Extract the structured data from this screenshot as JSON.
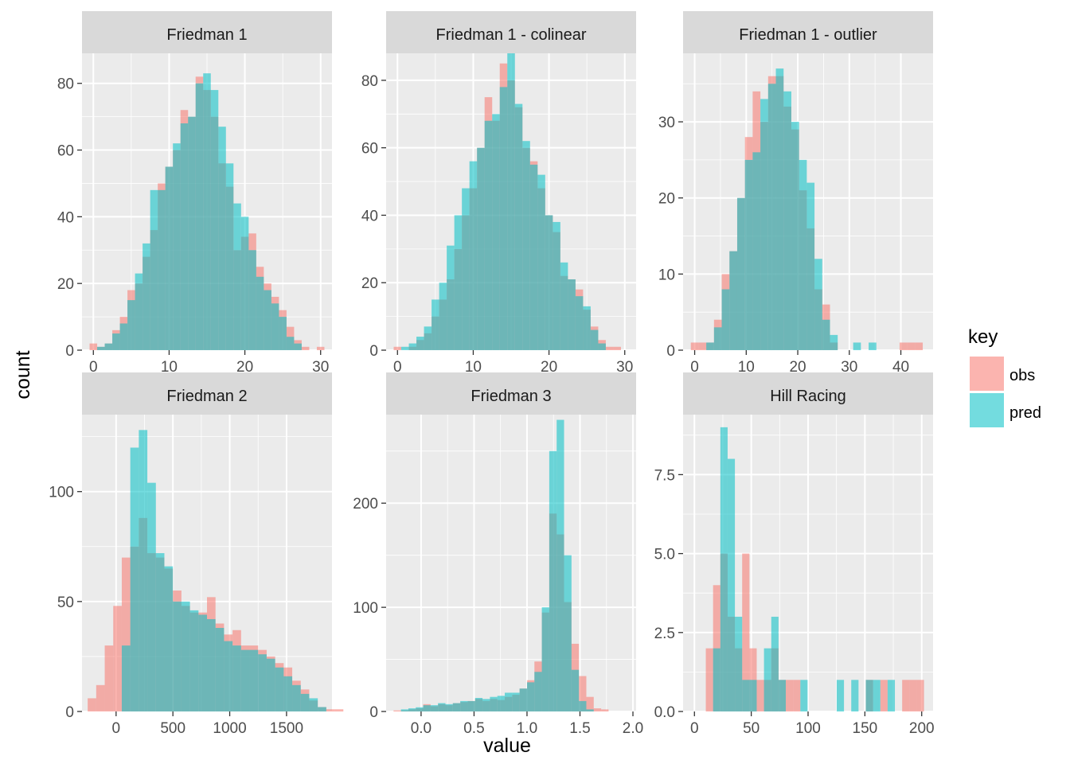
{
  "chart_data": [
    {
      "type": "bar",
      "title": "Friedman 1",
      "xlim": [
        -1.5,
        31.5
      ],
      "ylim": [
        0,
        89
      ],
      "xticks": [
        0,
        10,
        20,
        30
      ],
      "yticks": [
        0,
        20,
        40,
        60,
        80
      ],
      "ytick_labels": [
        "0",
        "20",
        "40",
        "60",
        "80"
      ],
      "bin_start": -0.5,
      "bin_width": 1,
      "series": [
        {
          "name": "obs",
          "values": [
            2,
            1,
            2,
            6,
            10,
            18,
            20,
            28,
            36,
            50,
            55,
            60,
            72,
            70,
            82,
            78,
            70,
            56,
            49,
            30,
            34,
            35,
            25,
            20,
            16,
            12,
            7,
            3,
            1,
            0,
            1
          ]
        },
        {
          "name": "pred",
          "values": [
            0,
            1,
            2,
            5,
            8,
            15,
            23,
            32,
            48,
            48,
            55,
            62,
            68,
            70,
            80,
            83,
            78,
            67,
            56,
            44,
            40,
            30,
            22,
            18,
            14,
            10,
            4,
            2,
            0,
            0,
            0
          ]
        }
      ]
    },
    {
      "type": "bar",
      "title": "Friedman 1 - colinear",
      "xlim": [
        -1.5,
        31.5
      ],
      "ylim": [
        0,
        88
      ],
      "xticks": [
        0,
        10,
        20,
        30
      ],
      "yticks": [
        0,
        20,
        40,
        60,
        80
      ],
      "ytick_labels": [
        "0",
        "20",
        "40",
        "60",
        "80"
      ],
      "bin_start": -0.5,
      "bin_width": 1,
      "series": [
        {
          "name": "obs",
          "values": [
            1,
            0,
            1,
            3,
            5,
            10,
            15,
            21,
            30,
            40,
            48,
            60,
            75,
            68,
            85,
            80,
            72,
            60,
            56,
            48,
            40,
            35,
            22,
            21,
            18,
            12,
            7,
            3,
            1,
            1,
            0
          ]
        },
        {
          "name": "pred",
          "values": [
            0,
            1,
            2,
            4,
            7,
            15,
            20,
            31,
            40,
            48,
            56,
            60,
            68,
            70,
            78,
            88,
            73,
            62,
            55,
            52,
            40,
            38,
            26,
            21,
            16,
            13,
            6,
            2,
            0,
            0,
            0
          ]
        }
      ]
    },
    {
      "type": "bar",
      "title": "Friedman 1 - outlier",
      "xlim": [
        -2.25,
        46.25
      ],
      "ylim": [
        0,
        39
      ],
      "xticks": [
        0,
        10,
        20,
        30,
        40
      ],
      "yticks": [
        0,
        10,
        20,
        30
      ],
      "ytick_labels": [
        "0",
        "10",
        "20",
        "30"
      ],
      "bin_start": -0.75,
      "bin_width": 1.5,
      "series": [
        {
          "name": "obs",
          "values": [
            1,
            1,
            1,
            4,
            10,
            13,
            20,
            28,
            34,
            30,
            36,
            36,
            32,
            29,
            21,
            16,
            8,
            6,
            1,
            0,
            0,
            0,
            0,
            0,
            0,
            0,
            0,
            1,
            1,
            1
          ]
        },
        {
          "name": "pred",
          "values": [
            0,
            0,
            1,
            3,
            8,
            13,
            20,
            25,
            26,
            33,
            35,
            37,
            34,
            30,
            25,
            22,
            12,
            4,
            2,
            0,
            0,
            1,
            0,
            1,
            0,
            0,
            0,
            0,
            0,
            0
          ]
        }
      ]
    },
    {
      "type": "bar",
      "title": "Friedman 2",
      "xlim": [
        -300,
        1900
      ],
      "ylim": [
        0,
        135
      ],
      "xticks": [
        0,
        500,
        1000,
        1500
      ],
      "xtick_labels": [
        "0",
        "500",
        "1000",
        "1500"
      ],
      "yticks": [
        0,
        50,
        100
      ],
      "ytick_labels": [
        "0",
        "50",
        "100"
      ],
      "bin_start": -250,
      "bin_width": 75,
      "series": [
        {
          "name": "obs",
          "values": [
            6,
            12,
            30,
            48,
            70,
            75,
            88,
            72,
            70,
            65,
            55,
            48,
            45,
            45,
            52,
            40,
            35,
            37,
            30,
            30,
            28,
            25,
            22,
            20,
            14,
            10,
            5,
            2,
            1,
            1
          ]
        },
        {
          "name": "pred",
          "values": [
            0,
            0,
            0,
            0,
            30,
            120,
            128,
            104,
            72,
            66,
            50,
            50,
            46,
            44,
            42,
            38,
            32,
            30,
            28,
            28,
            26,
            24,
            20,
            16,
            12,
            8,
            6,
            2,
            0,
            0
          ]
        }
      ]
    },
    {
      "type": "bar",
      "title": "Friedman 3",
      "xlim": [
        -0.33,
        2.03
      ],
      "ylim": [
        0,
        285
      ],
      "xticks": [
        0.0,
        0.5,
        1.0,
        1.5,
        2.0
      ],
      "xtick_labels": [
        "0.0",
        "0.5",
        "1.0",
        "1.5",
        "2.0"
      ],
      "yticks": [
        0,
        100,
        200
      ],
      "ytick_labels": [
        "0",
        "100",
        "200"
      ],
      "bin_start": -0.26,
      "bin_width": 0.07,
      "series": [
        {
          "name": "obs",
          "values": [
            1,
            1,
            2,
            3,
            7,
            5,
            7,
            6,
            8,
            9,
            10,
            12,
            10,
            12,
            11,
            14,
            16,
            22,
            30,
            48,
            95,
            190,
            170,
            105,
            65,
            34,
            14,
            3,
            2
          ]
        },
        {
          "name": "pred",
          "values": [
            0,
            2,
            3,
            4,
            6,
            6,
            8,
            7,
            8,
            10,
            10,
            13,
            12,
            14,
            15,
            18,
            18,
            22,
            28,
            38,
            100,
            250,
            280,
            150,
            40,
            10,
            2,
            0,
            0
          ]
        }
      ]
    },
    {
      "type": "bar",
      "title": "Hill Racing",
      "xlim": [
        -10,
        210
      ],
      "ylim": [
        0,
        9.4
      ],
      "xticks": [
        0,
        50,
        100,
        150,
        200
      ],
      "xtick_labels": [
        "0",
        "50",
        "100",
        "150",
        "200"
      ],
      "yticks": [
        0,
        2.5,
        5,
        7.5
      ],
      "ytick_labels": [
        "0.0",
        "2.5",
        "5.0",
        "7.5"
      ],
      "bin_start": 10,
      "bin_width": 6.4,
      "series": [
        {
          "name": "obs",
          "values": [
            2,
            4,
            5,
            3,
            2,
            5,
            2,
            1,
            1,
            2,
            1,
            1,
            1,
            0,
            0,
            0,
            0,
            0,
            0,
            0,
            0,
            0,
            1,
            0,
            1,
            0,
            0,
            1,
            1,
            1
          ]
        },
        {
          "name": "pred",
          "values": [
            0,
            2,
            9,
            8,
            3,
            1,
            1,
            0,
            2,
            3,
            1,
            0,
            0,
            1,
            0,
            0,
            0,
            0,
            1,
            0,
            1,
            0,
            1,
            1,
            0,
            1,
            0,
            0,
            0,
            0
          ]
        }
      ]
    }
  ],
  "axes": {
    "xlabel": "value",
    "ylabel": "count"
  },
  "legend": {
    "title": "key",
    "items": [
      {
        "label": "obs",
        "color": "#F8766D"
      },
      {
        "label": "pred",
        "color": "#00BFC4"
      }
    ]
  },
  "colors": {
    "obs": "#F8766D",
    "pred": "#00BFC4",
    "panel_bg": "#EBEBEB",
    "grid": "#FFFFFF",
    "strip_bg": "#D9D9D9"
  }
}
